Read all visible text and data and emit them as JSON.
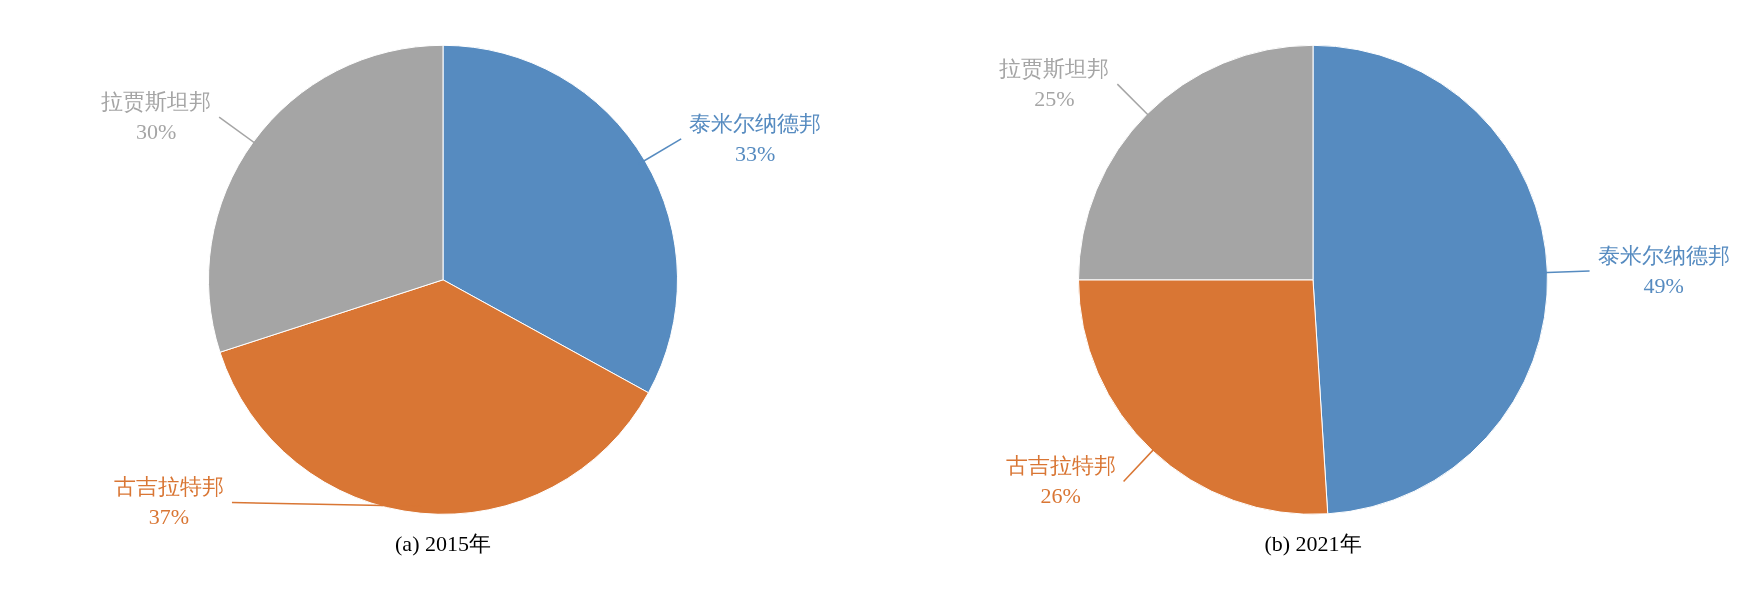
{
  "chart_data": [
    {
      "type": "pie",
      "title": "(a) 2015年",
      "categories": [
        "泰米尔纳德邦",
        "古吉拉特邦",
        "拉贾斯坦邦"
      ],
      "values": [
        33,
        37,
        30
      ],
      "colors": [
        "#568bc0",
        "#d97634",
        "#a5a5a5"
      ],
      "value_labels": [
        "33%",
        "37%",
        "30%"
      ]
    },
    {
      "type": "pie",
      "title": "(b) 2021年",
      "categories": [
        "泰米尔纳德邦",
        "古吉拉特邦",
        "拉贾斯坦邦"
      ],
      "values": [
        49,
        26,
        25
      ],
      "colors": [
        "#568bc0",
        "#d97634",
        "#a5a5a5"
      ],
      "value_labels": [
        "49%",
        "26%",
        "25%"
      ]
    }
  ]
}
